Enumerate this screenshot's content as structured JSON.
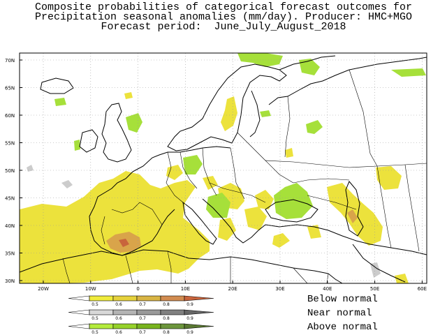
{
  "title": {
    "line1": "Composite probabilities of categorical forecast outcomes for",
    "line2": "Precipitation seasonal anomalies (mm/day). Producer: HMC+MGO",
    "line3": "Forecast period:  June_July_August_2018"
  },
  "map": {
    "lat_ticks": [
      "70N",
      "65N",
      "60N",
      "55N",
      "50N",
      "45N",
      "40N",
      "35N",
      "30N"
    ],
    "lon_ticks": [
      "20W",
      "10W",
      "0",
      "10E",
      "20E",
      "30E",
      "40E",
      "50E",
      "60E"
    ]
  },
  "legend": {
    "ticks": [
      "0.5",
      "0.6",
      "0.7",
      "0.8",
      "0.9"
    ],
    "bars": [
      {
        "label": "Below normal",
        "colors": [
          "#f0ec3c",
          "#e6d23c",
          "#d9b544",
          "#d28c50",
          "#c8643c"
        ]
      },
      {
        "label": "Near normal",
        "colors": [
          "#d8d8d8",
          "#b4b4b4",
          "#9a9a9a",
          "#808080",
          "#666666"
        ]
      },
      {
        "label": "Above normal",
        "colors": [
          "#b4ec3c",
          "#96d22a",
          "#78b41e",
          "#6c963c",
          "#5a7832"
        ]
      }
    ]
  },
  "colors": {
    "below": "#ece23c",
    "below_strong": "#d99a4a",
    "near": "#cccccc",
    "above": "#a6e03a"
  }
}
